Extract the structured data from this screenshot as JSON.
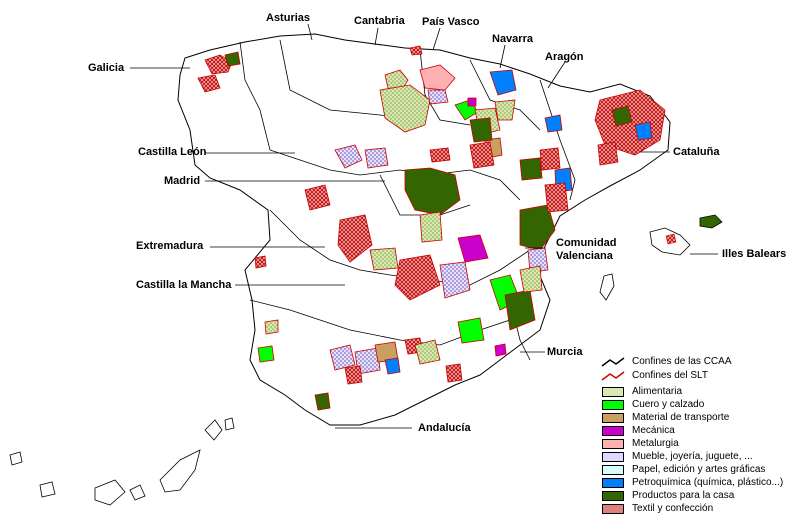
{
  "regions": {
    "asturias": "Asturias",
    "cantabria": "Cantabria",
    "pais_vasco": "País Vasco",
    "navarra": "Navarra",
    "aragon": "Aragón",
    "galicia": "Galicia",
    "castilla_leon": "Castilla León",
    "madrid": "Madrid",
    "cataluna": "Cataluña",
    "extremadura": "Extremadura",
    "comunidad_valenciana": "Comunidad Valenciana",
    "illes_balears": "Illes Balears",
    "castilla_mancha": "Castilla la Mancha",
    "murcia": "Murcia",
    "andalucia": "Andalucía"
  },
  "legend": {
    "ccaa_border": "Confines de las CCAA",
    "slt_border": "Confines del SLT",
    "items": [
      {
        "label": "Alimentaria",
        "color": "#cce0a0"
      },
      {
        "label": "Cuero y calzado",
        "color": "#00ff00"
      },
      {
        "label": "Material de transporte",
        "color": "#c8a060"
      },
      {
        "label": "Mecánica",
        "color": "#cc00cc"
      },
      {
        "label": "Metalurgia",
        "color": "#ffb0b0"
      },
      {
        "label": "Mueble, joyería, juguete, ...",
        "color": "#c8b8f0"
      },
      {
        "label": "Papel, edición y artes gráficas",
        "color": "#d8ffff"
      },
      {
        "label": "Petroquímica (química, plástico...)",
        "color": "#0080ff"
      },
      {
        "label": "Productos para la casa",
        "color": "#336600"
      },
      {
        "label": "Textil y confección",
        "color": "#e08080"
      }
    ]
  },
  "colors": {
    "ccaa_line": "#000000",
    "slt_line": "#cc0000",
    "land": "#ffffff"
  }
}
